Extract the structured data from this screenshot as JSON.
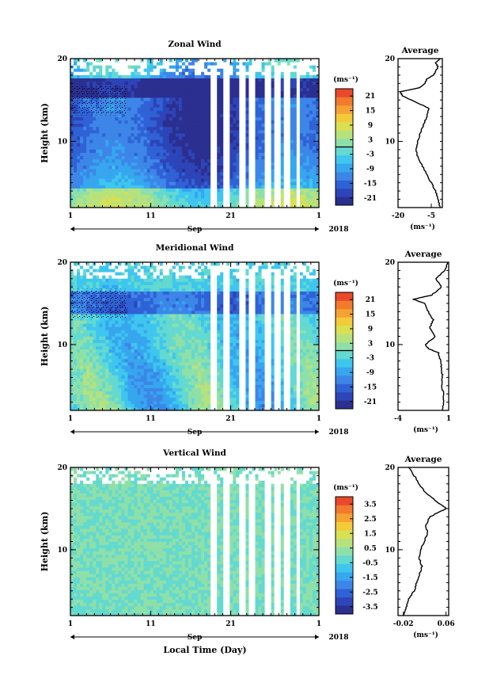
{
  "page": {
    "xlabel": "Local Time (Day)"
  },
  "chart_data": [
    {
      "type": "heatmap",
      "name": "zonal",
      "title": "Zonal Wind",
      "ylabel": "Height (km)",
      "x_ticks": [
        "1",
        "11",
        "21",
        "1"
      ],
      "month_label": "Sep",
      "year_label": "2018",
      "y_ticks": [
        "20",
        "10"
      ],
      "ylim": [
        2,
        20
      ],
      "colorbar": {
        "unit": "(ms⁻¹)",
        "ticks": [
          "21",
          "15",
          "9",
          "3",
          "-3",
          "-9",
          "-15",
          "-21"
        ],
        "range": [
          -24,
          24
        ],
        "contour_level": 0
      },
      "profile": {
        "title": "Average",
        "x_ticks": [
          "-20",
          "-5"
        ],
        "xlim": [
          -20,
          0
        ],
        "unit": "(ms⁻¹)",
        "height": [
          2,
          3,
          4,
          5,
          6,
          7,
          8,
          9,
          10,
          11,
          12,
          13,
          14,
          15,
          15.5,
          16,
          16.5,
          17,
          17.5,
          18,
          18.5,
          19,
          19.5,
          20
        ],
        "value": [
          -1,
          -2,
          -3,
          -5,
          -7,
          -9,
          -11,
          -12,
          -11,
          -10,
          -8.5,
          -7,
          -6,
          -14,
          -18,
          -19,
          -10,
          -8,
          -7,
          -4,
          -3,
          -2,
          -3,
          -1
        ]
      }
    },
    {
      "type": "heatmap",
      "name": "meridional",
      "title": "Meridional Wind",
      "ylabel": "Height (km)",
      "x_ticks": [
        "1",
        "11",
        "21",
        "1"
      ],
      "month_label": "Sep",
      "year_label": "2018",
      "y_ticks": [
        "20",
        "10"
      ],
      "ylim": [
        2,
        20
      ],
      "colorbar": {
        "unit": "(ms⁻¹)",
        "ticks": [
          "21",
          "15",
          "9",
          "3",
          "-3",
          "-9",
          "-15",
          "-21"
        ],
        "range": [
          -24,
          24
        ],
        "contour_level": 0
      },
      "profile": {
        "title": "Average",
        "x_ticks": [
          "-4",
          "1"
        ],
        "xlim": [
          -4,
          1
        ],
        "unit": "(ms⁻¹)",
        "height": [
          2,
          3,
          4,
          5,
          6,
          7,
          8,
          9,
          9.5,
          10,
          11,
          12,
          13,
          14,
          15,
          15.5,
          16,
          17,
          18,
          19,
          20
        ],
        "value": [
          0.4,
          0.5,
          0.5,
          0.3,
          0.4,
          0.3,
          0.2,
          0,
          -1.0,
          -1.3,
          -0.3,
          -0.9,
          -0.5,
          -1.0,
          -1.4,
          -2.5,
          -0.7,
          0.3,
          -0.3,
          0.6,
          0.9
        ]
      }
    },
    {
      "type": "heatmap",
      "name": "vertical",
      "title": "Vertical Wind",
      "ylabel": "Height (km)",
      "x_ticks": [
        "1",
        "11",
        "21",
        "1"
      ],
      "month_label": "Sep",
      "year_label": "2018",
      "y_ticks": [
        "20",
        "10"
      ],
      "ylim": [
        2,
        20
      ],
      "colorbar": {
        "unit": "(ms⁻¹)",
        "ticks": [
          "3.5",
          "2.5",
          "1.5",
          "0.5",
          "-0.5",
          "-1.5",
          "-2.5",
          "-3.5"
        ],
        "range": [
          -4,
          4
        ]
      },
      "profile": {
        "title": "Average",
        "x_ticks": [
          "-0.02",
          "0.06"
        ],
        "xlim": [
          -0.03,
          0.065
        ],
        "unit": "(ms⁻¹)",
        "height": [
          2,
          3,
          4,
          5,
          6,
          7,
          8,
          9,
          10,
          11,
          12,
          13,
          14,
          15,
          16,
          17,
          18,
          19,
          20
        ],
        "value": [
          -0.02,
          -0.015,
          -0.01,
          0,
          0.005,
          0.01,
          0.015,
          0.01,
          0.012,
          0.02,
          0.025,
          0.022,
          0.03,
          0.06,
          0.04,
          0.02,
          0.01,
          0.0,
          -0.01
        ]
      }
    }
  ]
}
